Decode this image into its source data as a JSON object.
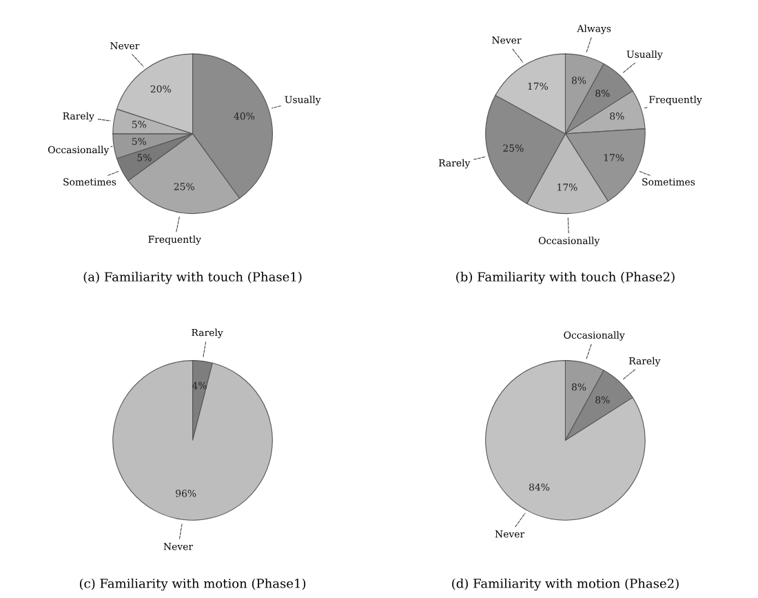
{
  "chart_data": [
    {
      "type": "pie",
      "title": "(a) Familiarity with touch (Phase1)",
      "categories": [
        "Usually",
        "Frequently",
        "Sometimes",
        "Occasionally",
        "Rarely",
        "Never"
      ],
      "values": [
        40,
        25,
        5,
        5,
        5,
        20
      ],
      "value_labels": [
        "40%",
        "25%",
        "5%",
        "5%",
        "5%",
        "20%"
      ],
      "colors": [
        "#8c8c8c",
        "#a8a8a8",
        "#7a7a7a",
        "#9a9a9a",
        "#b4b4b4",
        "#c4c4c4"
      ]
    },
    {
      "type": "pie",
      "title": "(b) Familiarity with touch (Phase2)",
      "categories": [
        "Always",
        "Usually",
        "Frequently",
        "Sometimes",
        "Occasionally",
        "Rarely",
        "Never"
      ],
      "values": [
        8,
        8,
        8,
        17,
        17,
        25,
        17
      ],
      "value_labels": [
        "8%",
        "8%",
        "8%",
        "17%",
        "17%",
        "25%",
        "17%"
      ],
      "colors": [
        "#a0a0a0",
        "#888888",
        "#b0b0b0",
        "#959595",
        "#bcbcbc",
        "#8a8a8a",
        "#c4c4c4"
      ]
    },
    {
      "type": "pie",
      "title": "(c) Familiarity with motion (Phase1)",
      "categories": [
        "Rarely",
        "Never"
      ],
      "values": [
        4,
        96
      ],
      "value_labels": [
        "4%",
        "96%"
      ],
      "colors": [
        "#7e7e7e",
        "#bdbdbd"
      ]
    },
    {
      "type": "pie",
      "title": "(d) Familiarity with motion (Phase2)",
      "categories": [
        "Occasionally",
        "Rarely",
        "Never"
      ],
      "values": [
        8,
        8,
        84
      ],
      "value_labels": [
        "8%",
        "8%",
        "84%"
      ],
      "colors": [
        "#9c9c9c",
        "#858585",
        "#c2c2c2"
      ]
    }
  ]
}
